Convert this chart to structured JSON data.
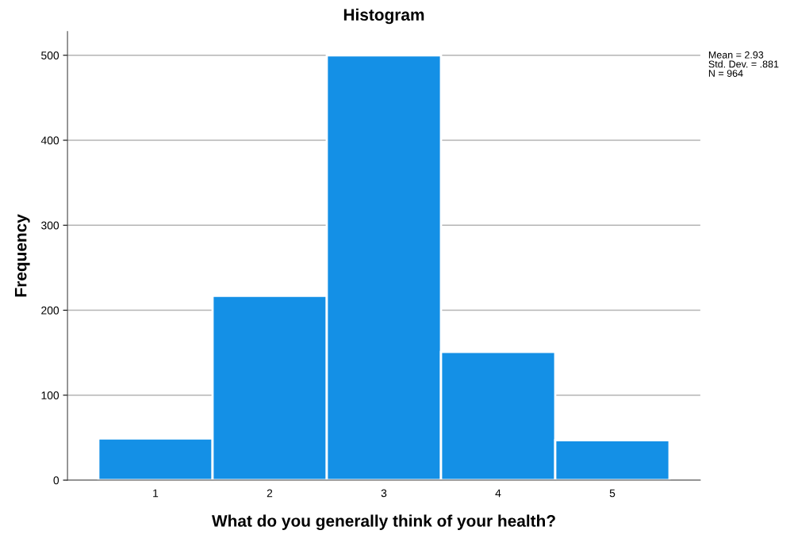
{
  "chart_data": {
    "type": "histogram",
    "title": "Histogram",
    "xlabel": "What do you generally think of your health?",
    "ylabel": "Frequency",
    "bins": [
      0.5,
      1.5,
      2.5,
      3.5,
      4.5,
      5.5
    ],
    "values": [
      49,
      217,
      500,
      151,
      47
    ],
    "color": "#1490e6",
    "xlim": [
      0.23,
      5.77
    ],
    "xticks": [
      1,
      2,
      3,
      4,
      5
    ],
    "ylim": [
      0,
      528
    ],
    "yticks": [
      0,
      100,
      200,
      300,
      400,
      500
    ],
    "grid": "y",
    "annotations": [
      "Mean = 2.93\nStd. Dev. = .881\nN = 964"
    ]
  }
}
